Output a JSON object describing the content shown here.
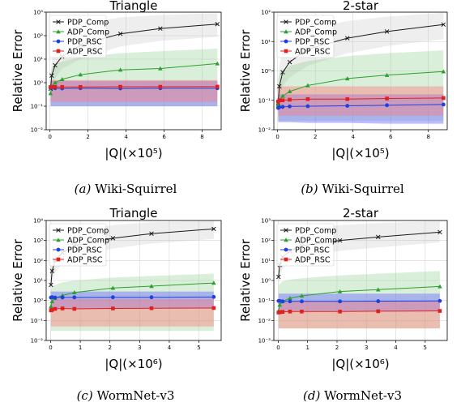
{
  "colors": {
    "PDP_Comp": "#1a1a1a",
    "ADP_Comp": "#2ca02c",
    "PDP_RSC": "#1f3fe0",
    "ADP_RSC": "#e02020",
    "band_PDP_Comp": "#bdbdbd",
    "band_ADP_Comp": "#7bc77b",
    "band_PDP_RSC": "#6a6aff",
    "band_ADP_RSC": "#ff7a7a"
  },
  "legend": {
    "items": [
      {
        "key": "PDP_Comp",
        "label": "PDP_Comp",
        "marker": "x"
      },
      {
        "key": "ADP_Comp",
        "label": "ADP_Comp",
        "marker": "triangle"
      },
      {
        "key": "PDP_RSC",
        "label": "PDP_RSC",
        "marker": "circle"
      },
      {
        "key": "ADP_RSC",
        "label": "ADP_RSC",
        "marker": "square"
      }
    ]
  },
  "chart_data": [
    {
      "type": "line",
      "panel": "a",
      "title": "Triangle",
      "ylabel": "Relative Error",
      "xlabel": "|Q|(×10⁵)",
      "xlim": [
        -0.2,
        9.0
      ],
      "xticks": [
        0,
        2,
        4,
        6,
        8
      ],
      "xtick_labels": [
        "0",
        "2",
        "4",
        "6",
        "8"
      ],
      "ylog": true,
      "ylim_exp": [
        -2,
        3
      ],
      "ytick_labels": [
        "10⁻²",
        "10⁻¹",
        "10⁰",
        "10¹",
        "10²",
        "10³"
      ],
      "grid": true,
      "legend_position": "upper-left",
      "caption_letter": "(a)",
      "caption_name": "Wiki-Squirrel",
      "x": [
        0.03,
        0.09,
        0.27,
        0.64,
        1.6,
        3.7,
        5.8,
        8.8
      ],
      "series": [
        {
          "name": "PDP_Comp",
          "values": [
            0.55,
            2.0,
            5.5,
            13,
            40,
            120,
            200,
            310
          ],
          "lower": [
            0.3,
            0.6,
            1.5,
            4,
            10,
            35,
            60,
            90
          ],
          "upper": [
            1.5,
            8,
            30,
            80,
            300,
            600,
            750,
            900
          ]
        },
        {
          "name": "ADP_Comp",
          "values": [
            0.35,
            0.7,
            1.0,
            1.4,
            2.2,
            3.5,
            4.0,
            6.5
          ],
          "lower": [
            0.1,
            0.1,
            0.1,
            0.1,
            0.1,
            0.1,
            0.1,
            0.1
          ],
          "upper": [
            2,
            4,
            6,
            8,
            12,
            18,
            22,
            28
          ]
        },
        {
          "name": "PDP_RSC",
          "values": [
            0.6,
            0.6,
            0.58,
            0.57,
            0.58,
            0.57,
            0.58,
            0.58
          ],
          "lower": [
            0.1,
            0.1,
            0.1,
            0.1,
            0.1,
            0.1,
            0.1,
            0.1
          ],
          "upper": [
            1.2,
            1.2,
            1.2,
            1.2,
            1.2,
            1.2,
            1.2,
            1.2
          ]
        },
        {
          "name": "ADP_RSC",
          "values": [
            0.65,
            0.66,
            0.66,
            0.66,
            0.66,
            0.67,
            0.67,
            0.68
          ],
          "lower": [
            0.15,
            0.15,
            0.15,
            0.15,
            0.15,
            0.15,
            0.15,
            0.15
          ],
          "upper": [
            1.3,
            1.3,
            1.3,
            1.3,
            1.3,
            1.3,
            1.3,
            1.3
          ]
        }
      ]
    },
    {
      "type": "line",
      "panel": "b",
      "title": "2-star",
      "ylabel": "Relative Error",
      "xlabel": "|Q|(×10⁵)",
      "xlim": [
        -0.2,
        9.0
      ],
      "xticks": [
        0,
        2,
        4,
        6,
        8
      ],
      "xtick_labels": [
        "0",
        "2",
        "4",
        "6",
        "8"
      ],
      "ylog": true,
      "ylim_exp": [
        -2,
        2
      ],
      "ytick_labels": [
        "10⁻²",
        "10⁻¹",
        "10⁰",
        "10¹",
        "10²"
      ],
      "grid": true,
      "legend_position": "upper-left",
      "caption_letter": "(b)",
      "caption_name": "Wiki-Squirrel",
      "x": [
        0.03,
        0.09,
        0.27,
        0.64,
        1.6,
        3.7,
        5.8,
        8.8
      ],
      "series": [
        {
          "name": "PDP_Comp",
          "values": [
            0.08,
            0.3,
            0.9,
            2.0,
            5.5,
            13,
            22,
            38
          ],
          "lower": [
            0.04,
            0.1,
            0.3,
            0.6,
            1.5,
            4,
            7,
            12
          ],
          "upper": [
            0.3,
            1.5,
            5,
            10,
            25,
            50,
            70,
            95
          ]
        },
        {
          "name": "ADP_Comp",
          "values": [
            0.07,
            0.1,
            0.14,
            0.2,
            0.32,
            0.55,
            0.72,
            0.95
          ],
          "lower": [
            0.02,
            0.02,
            0.02,
            0.02,
            0.02,
            0.02,
            0.02,
            0.02
          ],
          "upper": [
            0.5,
            0.8,
            1.1,
            1.5,
            2.2,
            3.2,
            4,
            5
          ]
        },
        {
          "name": "PDP_RSC",
          "values": [
            0.055,
            0.058,
            0.06,
            0.062,
            0.063,
            0.065,
            0.068,
            0.072
          ],
          "lower": [
            0.018,
            0.018,
            0.018,
            0.018,
            0.017,
            0.017,
            0.016,
            0.016
          ],
          "upper": [
            0.16,
            0.16,
            0.16,
            0.16,
            0.16,
            0.16,
            0.16,
            0.16
          ]
        },
        {
          "name": "ADP_RSC",
          "values": [
            0.09,
            0.1,
            0.1,
            0.105,
            0.11,
            0.11,
            0.115,
            0.12
          ],
          "lower": [
            0.03,
            0.03,
            0.03,
            0.03,
            0.03,
            0.03,
            0.03,
            0.03
          ],
          "upper": [
            0.3,
            0.3,
            0.3,
            0.3,
            0.3,
            0.3,
            0.3,
            0.3
          ]
        }
      ]
    },
    {
      "type": "line",
      "panel": "c",
      "title": "Triangle",
      "ylabel": "Relative Error",
      "xlabel": "|Q|(×10⁶)",
      "xlim": [
        -0.15,
        5.75
      ],
      "xticks": [
        0,
        1,
        2,
        3,
        4,
        5
      ],
      "xtick_labels": [
        "0",
        "1",
        "2",
        "3",
        "4",
        "5"
      ],
      "ylog": true,
      "ylim_exp": [
        -2,
        4
      ],
      "ytick_labels": [
        "10⁻²",
        "10⁻¹",
        "10⁰",
        "10¹",
        "10²",
        "10³",
        "10⁴"
      ],
      "grid": true,
      "legend_position": "upper-left",
      "caption_letter": "(c)",
      "caption_name": "WormNet-v3",
      "x": [
        0.01,
        0.05,
        0.15,
        0.4,
        0.8,
        2.1,
        3.4,
        5.5
      ],
      "series": [
        {
          "name": "PDP_Comp",
          "values": [
            6,
            30,
            100,
            250,
            550,
            1300,
            2200,
            3800
          ],
          "lower": [
            1.5,
            8,
            25,
            70,
            150,
            400,
            700,
            1200
          ],
          "upper": [
            40,
            200,
            600,
            1500,
            3000,
            6000,
            8000,
            9500
          ]
        },
        {
          "name": "ADP_Comp",
          "values": [
            0.5,
            0.9,
            1.3,
            1.8,
            2.5,
            4.2,
            5.2,
            7.5
          ],
          "lower": [
            0.03,
            0.03,
            0.03,
            0.03,
            0.03,
            0.03,
            0.03,
            0.03
          ],
          "upper": [
            3,
            5,
            6,
            8,
            10,
            14,
            17,
            22
          ]
        },
        {
          "name": "PDP_RSC",
          "values": [
            1.4,
            1.45,
            1.4,
            1.42,
            1.43,
            1.45,
            1.45,
            1.5
          ],
          "lower": [
            0.4,
            0.4,
            0.4,
            0.4,
            0.4,
            0.4,
            0.4,
            0.4
          ],
          "upper": [
            2.8,
            2.8,
            2.8,
            2.8,
            2.8,
            2.8,
            2.8,
            2.8
          ]
        },
        {
          "name": "ADP_RSC",
          "values": [
            0.32,
            0.34,
            0.38,
            0.4,
            0.38,
            0.4,
            0.41,
            0.42
          ],
          "lower": [
            0.05,
            0.05,
            0.05,
            0.05,
            0.05,
            0.05,
            0.05,
            0.05
          ],
          "upper": [
            1.2,
            1.2,
            1.2,
            1.2,
            1.2,
            1.2,
            1.2,
            1.2
          ]
        }
      ]
    },
    {
      "type": "line",
      "panel": "d",
      "title": "2-star",
      "ylabel": "Relative Error",
      "xlabel": "|Q|(×10⁶)",
      "xlim": [
        -0.15,
        5.75
      ],
      "xticks": [
        0,
        1,
        2,
        3,
        4,
        5
      ],
      "xtick_labels": [
        "0",
        "1",
        "2",
        "3",
        "4",
        "5"
      ],
      "ylog": true,
      "ylim_exp": [
        -3,
        3
      ],
      "ytick_labels": [
        "10⁻³",
        "10⁻²",
        "10⁻¹",
        "10⁰",
        "10¹",
        "10²",
        "10³"
      ],
      "grid": true,
      "legend_position": "upper-left",
      "caption_letter": "(d)",
      "caption_name": "WormNet-v3",
      "x": [
        0.01,
        0.05,
        0.15,
        0.4,
        0.8,
        2.1,
        3.4,
        5.5
      ],
      "series": [
        {
          "name": "PDP_Comp",
          "values": [
            1.5,
            6,
            15,
            30,
            55,
            100,
            150,
            260
          ],
          "lower": [
            0.3,
            1.5,
            4,
            8,
            15,
            30,
            45,
            80
          ],
          "upper": [
            10,
            40,
            100,
            200,
            350,
            600,
            750,
            900
          ]
        },
        {
          "name": "ADP_Comp",
          "values": [
            0.03,
            0.06,
            0.09,
            0.13,
            0.17,
            0.28,
            0.35,
            0.5
          ],
          "lower": [
            0.004,
            0.004,
            0.004,
            0.004,
            0.004,
            0.004,
            0.004,
            0.004
          ],
          "upper": [
            0.5,
            0.7,
            0.9,
            1.1,
            1.3,
            1.8,
            2.2,
            3
          ]
        },
        {
          "name": "PDP_RSC",
          "values": [
            0.095,
            0.095,
            0.09,
            0.09,
            0.09,
            0.09,
            0.092,
            0.095
          ],
          "lower": [
            0.03,
            0.03,
            0.03,
            0.03,
            0.03,
            0.03,
            0.03,
            0.03
          ],
          "upper": [
            0.22,
            0.22,
            0.22,
            0.22,
            0.22,
            0.22,
            0.22,
            0.22
          ]
        },
        {
          "name": "ADP_RSC",
          "values": [
            0.025,
            0.026,
            0.027,
            0.028,
            0.028,
            0.028,
            0.029,
            0.03
          ],
          "lower": [
            0.004,
            0.004,
            0.004,
            0.004,
            0.004,
            0.004,
            0.004,
            0.004
          ],
          "upper": [
            0.09,
            0.09,
            0.09,
            0.09,
            0.09,
            0.09,
            0.09,
            0.09
          ]
        }
      ]
    }
  ]
}
